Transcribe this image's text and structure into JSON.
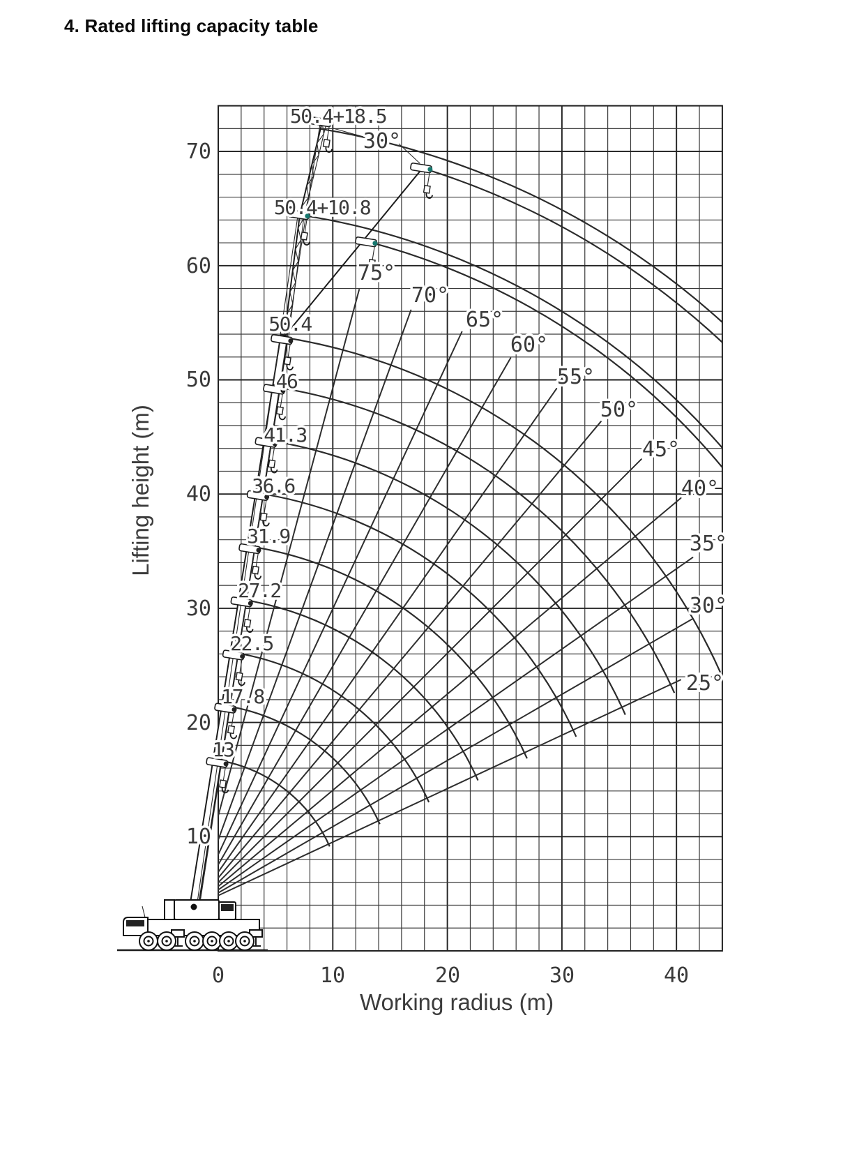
{
  "page_title": "4. Rated lifting capacity table",
  "chart_data": {
    "type": "line",
    "xlabel": "Working radius (m)",
    "ylabel": "Lifting height (m)",
    "xlim": [
      0,
      44
    ],
    "ylim": [
      0,
      74
    ],
    "grid": true,
    "grid_step_m": 2,
    "x_ticks": [
      "0",
      "10",
      "20",
      "30",
      "40"
    ],
    "y_ticks": [
      "10",
      "20",
      "30",
      "40",
      "50",
      "60",
      "70"
    ],
    "x_tick_values": [
      0,
      10,
      20,
      30,
      40
    ],
    "y_tick_values": [
      10,
      20,
      30,
      40,
      50,
      60,
      70
    ],
    "boom_lengths_m": [
      13,
      17.8,
      22.5,
      27.2,
      31.9,
      36.6,
      41.3,
      46,
      50.4
    ],
    "jib_combination_lengths_m": [
      61.2,
      68.9
    ],
    "boom_labels": [
      "13",
      "17.8",
      "22.5",
      "27.2",
      "31.9",
      "36.6",
      "41.3",
      "46",
      "50.4",
      "50.4+10.8",
      "50.4+18.5"
    ],
    "boom_angle_lines_deg": [
      25,
      30,
      35,
      40,
      45,
      50,
      55,
      60,
      65,
      70,
      75
    ],
    "angle_labels": [
      "25°",
      "30°",
      "35°",
      "40°",
      "45°",
      "50°",
      "55°",
      "60°",
      "65°",
      "70°",
      "75°"
    ],
    "jib_offset_angle_label": "30°",
    "units": "m"
  }
}
